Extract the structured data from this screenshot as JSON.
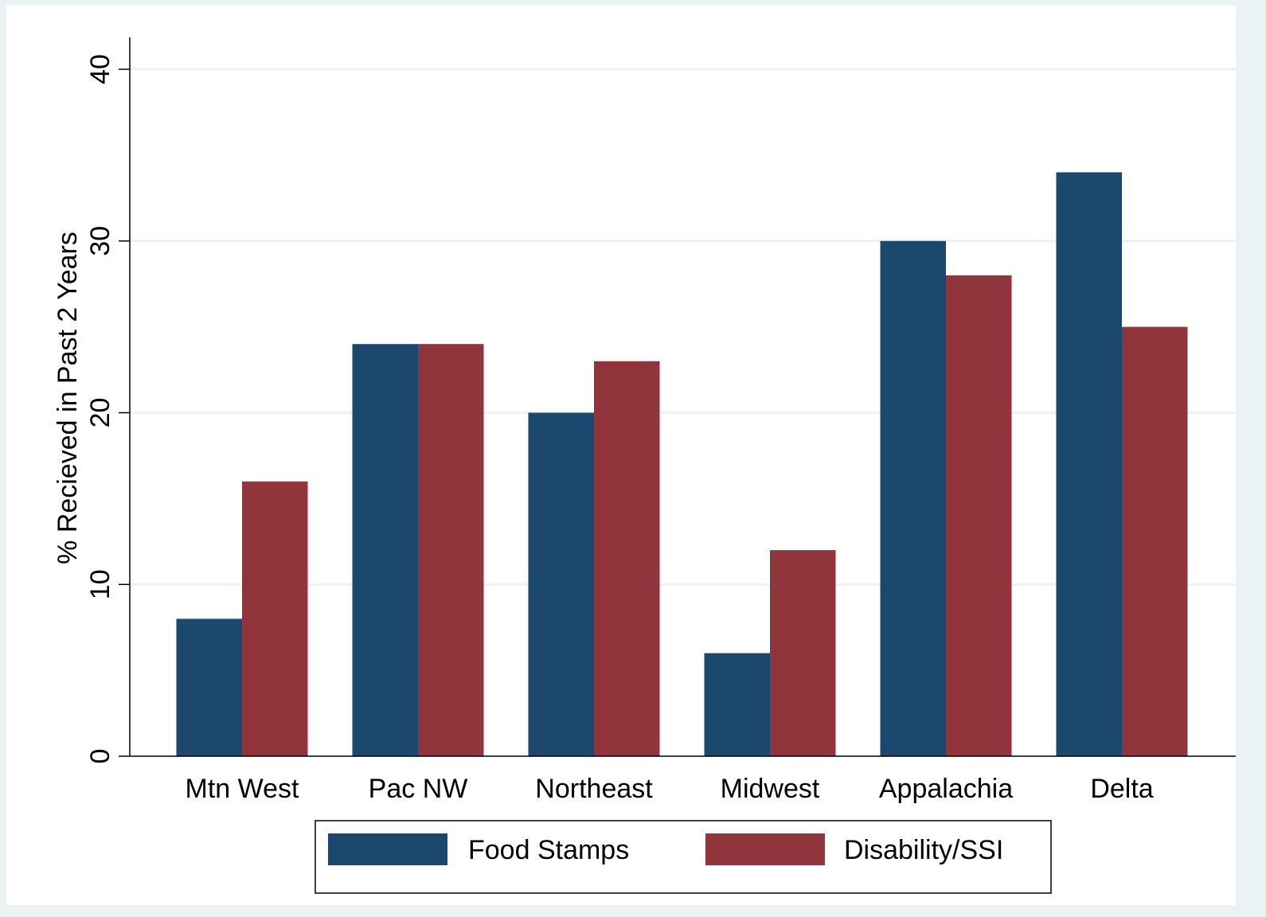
{
  "chart_data": {
    "type": "bar",
    "title": "",
    "xlabel": "",
    "ylabel": "% Recieved in Past 2 Years",
    "ylim": [
      0,
      42
    ],
    "yticks": [
      0,
      10,
      20,
      30,
      40
    ],
    "grid": true,
    "legend_position": "bottom",
    "categories": [
      "Mtn West",
      "Pac NW",
      "Northeast",
      "Midwest",
      "Appalachia",
      "Delta"
    ],
    "series": [
      {
        "name": "Food Stamps",
        "color": "#1c476f",
        "values": [
          8,
          24,
          20,
          6,
          30,
          34
        ]
      },
      {
        "name": "Disability/SSI",
        "color": "#90353b",
        "values": [
          16,
          24,
          23,
          12,
          28,
          25
        ]
      }
    ]
  },
  "colors": {
    "background": "#eaf2f3",
    "plot_area": "#ffffff",
    "gridline": "#eaf2f3",
    "axis": "#000000"
  }
}
